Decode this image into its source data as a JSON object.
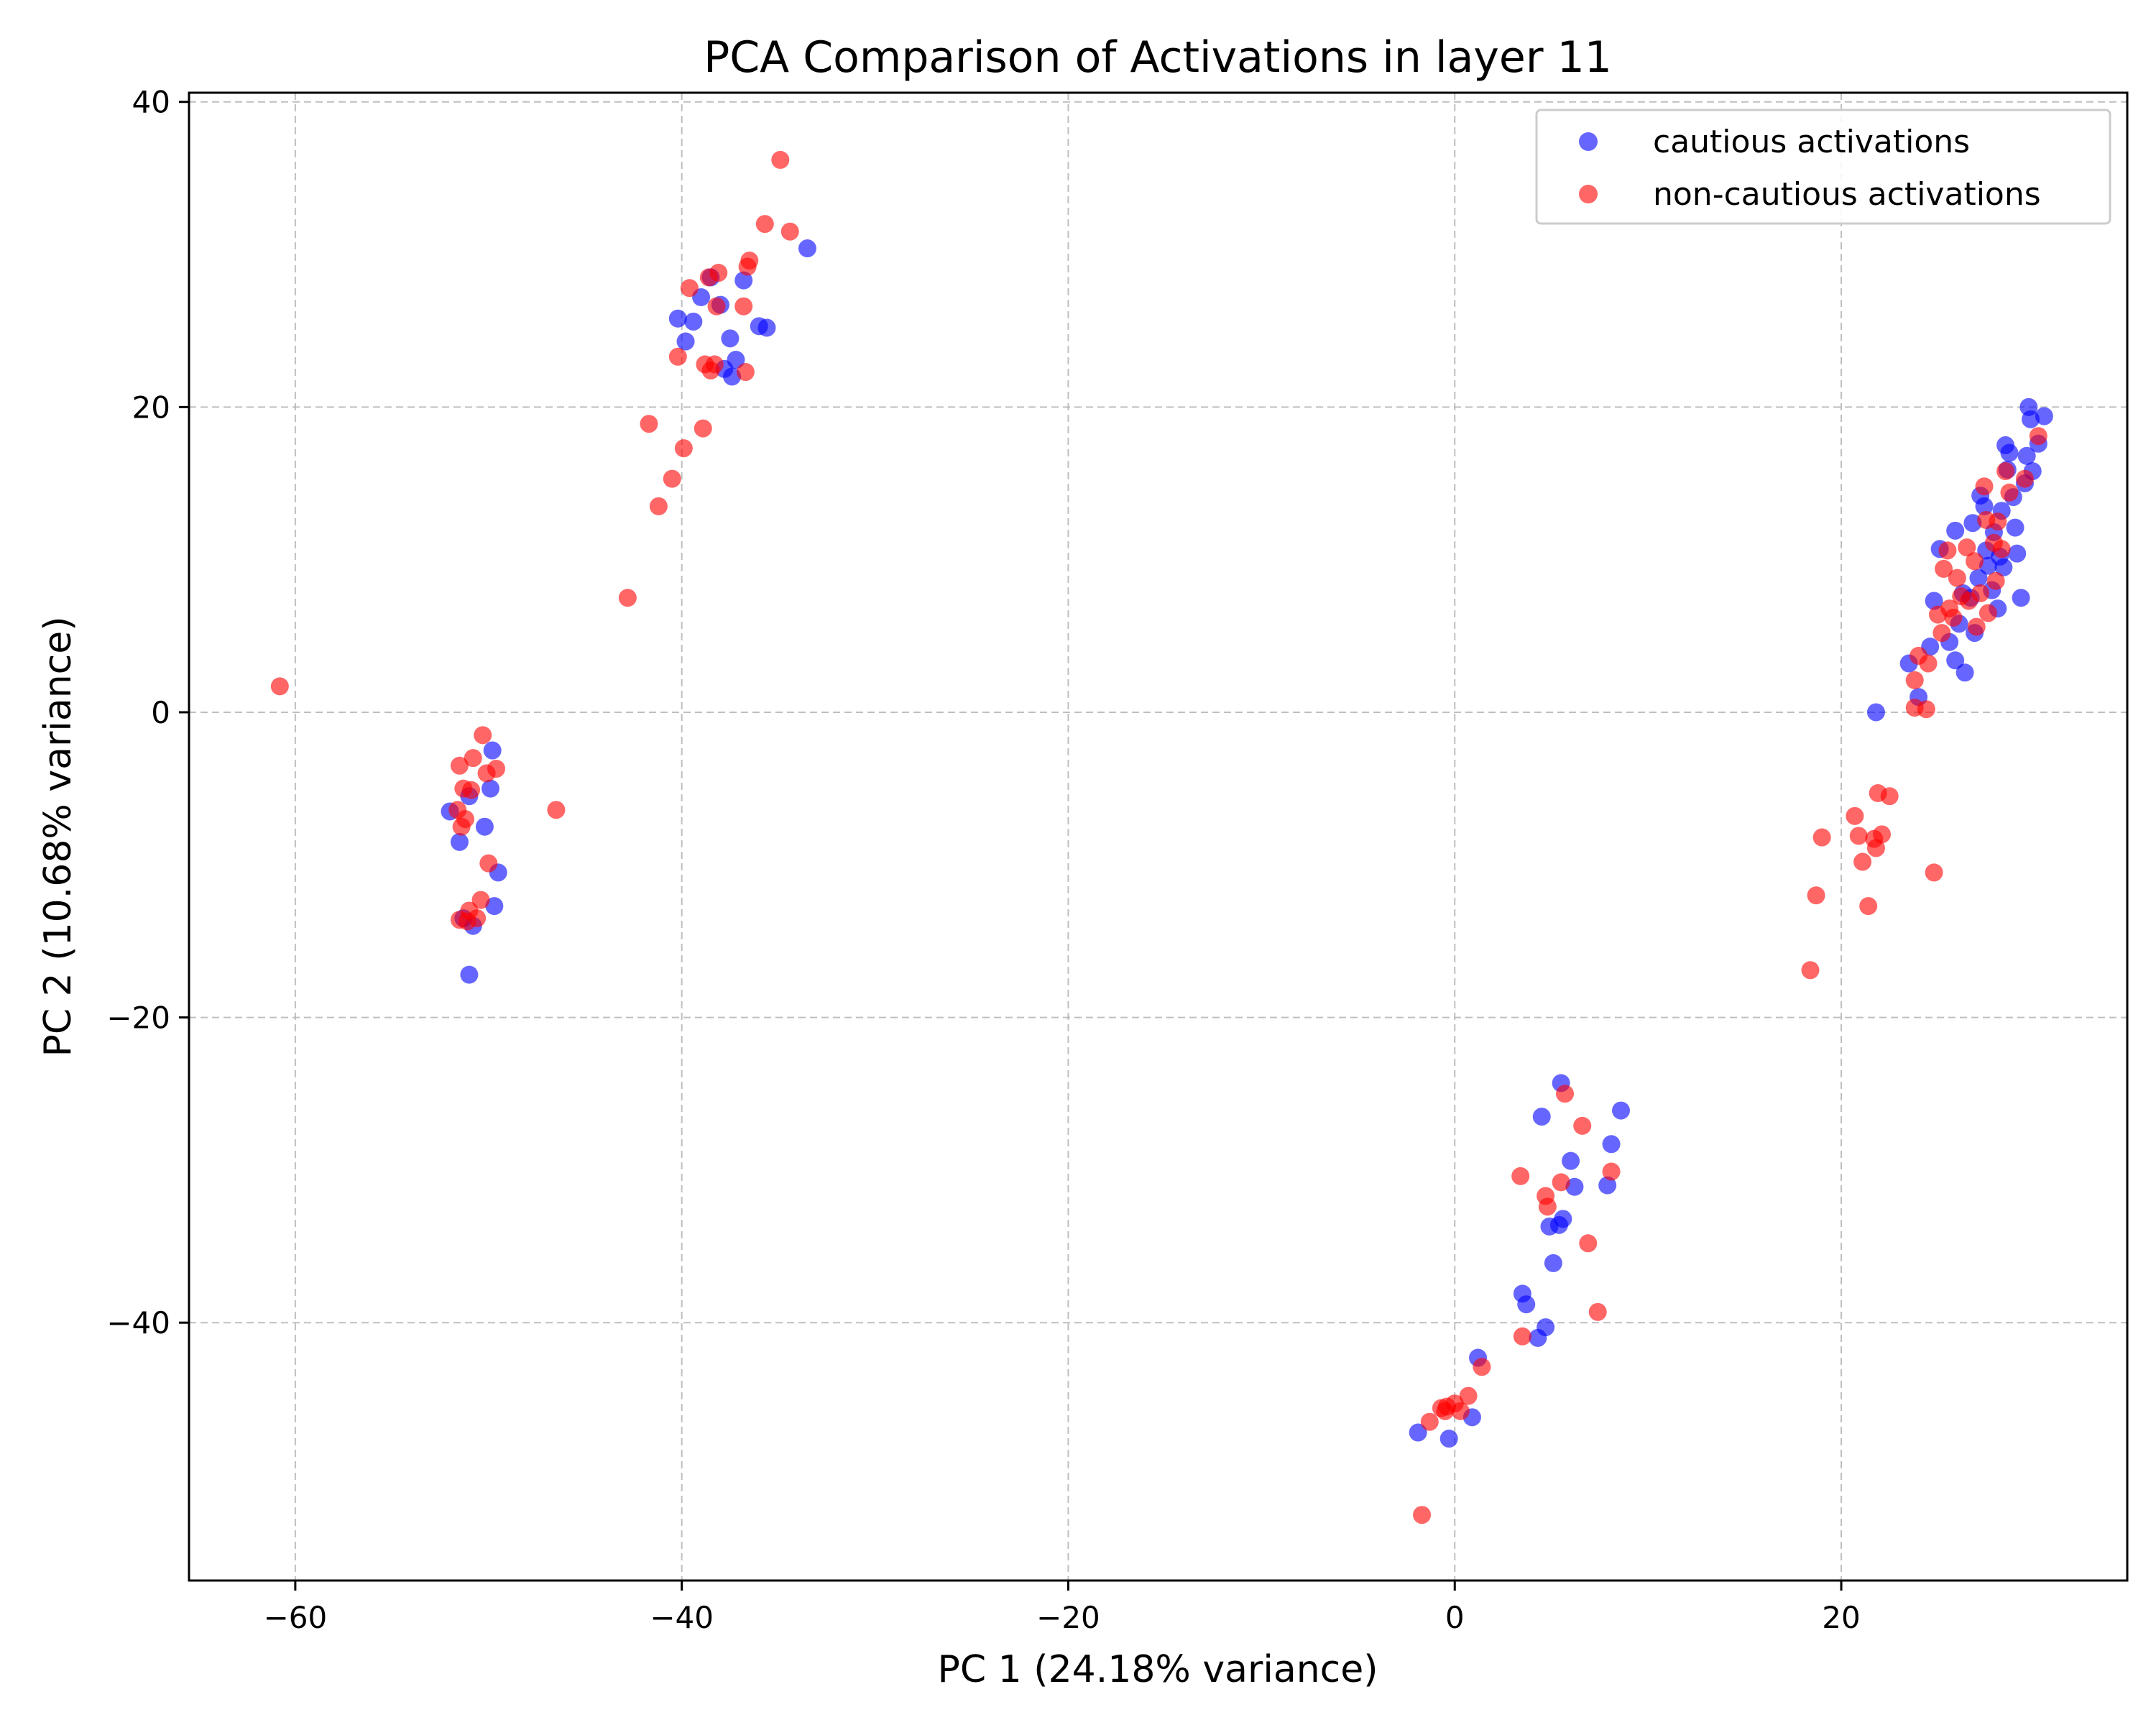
{
  "chart_data": {
    "type": "scatter",
    "title": "PCA Comparison of Activations in layer 11",
    "xlabel": "PC 1 (24.18% variance)",
    "ylabel": "PC 2 (10.68% variance)",
    "xlim": [
      -65.5,
      34.8
    ],
    "ylim": [
      -56.9,
      40.6
    ],
    "xticks": [
      -60,
      -40,
      -20,
      0,
      20
    ],
    "yticks": [
      -40,
      -20,
      0,
      20,
      40
    ],
    "xtick_labels": [
      "−60",
      "−40",
      "−20",
      "0",
      "20"
    ],
    "ytick_labels": [
      "−40",
      "−20",
      "0",
      "20",
      "40"
    ],
    "grid": true,
    "legend_position": "upper right",
    "series": [
      {
        "name": "cautious activations",
        "color": "#0000ff",
        "points": [
          [
            -52.0,
            -6.5
          ],
          [
            -51.5,
            -8.5
          ],
          [
            -51.0,
            -5.5
          ],
          [
            -50.2,
            -7.5
          ],
          [
            -49.8,
            -2.5
          ],
          [
            -49.5,
            -10.5
          ],
          [
            -49.7,
            -12.7
          ],
          [
            -50.8,
            -14.0
          ],
          [
            -51.0,
            -17.2
          ],
          [
            -49.9,
            -5.0
          ],
          [
            -51.3,
            -13.5
          ],
          [
            -40.2,
            25.8
          ],
          [
            -39.8,
            24.3
          ],
          [
            -39.4,
            25.6
          ],
          [
            -39.0,
            27.2
          ],
          [
            -38.5,
            28.5
          ],
          [
            -38.0,
            26.7
          ],
          [
            -37.8,
            22.5
          ],
          [
            -37.5,
            24.5
          ],
          [
            -37.2,
            23.1
          ],
          [
            -36.8,
            28.3
          ],
          [
            -36.0,
            25.3
          ],
          [
            -35.6,
            25.2
          ],
          [
            -33.5,
            30.4
          ],
          [
            -37.4,
            22.0
          ],
          [
            1.2,
            -42.3
          ],
          [
            0.9,
            -46.2
          ],
          [
            -0.3,
            -47.6
          ],
          [
            -1.9,
            -47.2
          ],
          [
            3.5,
            -38.1
          ],
          [
            3.7,
            -38.8
          ],
          [
            4.3,
            -41.0
          ],
          [
            4.7,
            -40.3
          ],
          [
            4.5,
            -26.5
          ],
          [
            4.9,
            -33.7
          ],
          [
            5.1,
            -36.1
          ],
          [
            5.4,
            -33.6
          ],
          [
            5.6,
            -33.2
          ],
          [
            5.5,
            -24.3
          ],
          [
            6.0,
            -29.4
          ],
          [
            6.2,
            -31.1
          ],
          [
            7.9,
            -31.0
          ],
          [
            8.1,
            -28.3
          ],
          [
            8.6,
            -26.1
          ],
          [
            21.8,
            0.0
          ],
          [
            23.5,
            3.2
          ],
          [
            24.0,
            1.0
          ],
          [
            24.6,
            4.3
          ],
          [
            24.8,
            7.3
          ],
          [
            25.1,
            10.7
          ],
          [
            25.6,
            4.6
          ],
          [
            25.9,
            11.9
          ],
          [
            25.9,
            3.4
          ],
          [
            26.1,
            5.8
          ],
          [
            26.3,
            7.8
          ],
          [
            26.4,
            2.6
          ],
          [
            26.7,
            7.5
          ],
          [
            26.9,
            5.2
          ],
          [
            27.2,
            14.2
          ],
          [
            27.4,
            13.5
          ],
          [
            27.5,
            10.6
          ],
          [
            27.6,
            9.6
          ],
          [
            27.8,
            8.0
          ],
          [
            27.9,
            11.8
          ],
          [
            28.1,
            6.8
          ],
          [
            28.2,
            10.2
          ],
          [
            28.3,
            13.2
          ],
          [
            28.5,
            17.5
          ],
          [
            28.6,
            15.9
          ],
          [
            28.7,
            17.0
          ],
          [
            28.9,
            14.1
          ],
          [
            29.0,
            12.1
          ],
          [
            29.1,
            10.4
          ],
          [
            29.3,
            7.5
          ],
          [
            29.5,
            15.0
          ],
          [
            29.6,
            16.8
          ],
          [
            29.8,
            19.2
          ],
          [
            29.9,
            15.8
          ],
          [
            30.2,
            17.6
          ],
          [
            29.7,
            20.0
          ],
          [
            30.5,
            19.4
          ],
          [
            28.4,
            9.5
          ],
          [
            26.8,
            12.4
          ],
          [
            27.1,
            8.8
          ]
        ]
      },
      {
        "name": "non-cautious activations",
        "color": "#ff0000",
        "points": [
          [
            -60.8,
            1.7
          ],
          [
            -46.5,
            -6.4
          ],
          [
            -50.3,
            -1.5
          ],
          [
            -51.5,
            -3.5
          ],
          [
            -50.8,
            -3.0
          ],
          [
            -50.1,
            -4.0
          ],
          [
            -49.6,
            -3.7
          ],
          [
            -51.3,
            -5.0
          ],
          [
            -50.9,
            -5.1
          ],
          [
            -51.6,
            -6.4
          ],
          [
            -51.2,
            -7.0
          ],
          [
            -51.4,
            -7.5
          ],
          [
            -50.0,
            -9.9
          ],
          [
            -50.4,
            -12.3
          ],
          [
            -51.0,
            -13.0
          ],
          [
            -51.5,
            -13.6
          ],
          [
            -50.6,
            -13.5
          ],
          [
            -51.1,
            -13.7
          ],
          [
            -42.8,
            7.5
          ],
          [
            -41.7,
            18.9
          ],
          [
            -41.2,
            13.5
          ],
          [
            -40.5,
            15.3
          ],
          [
            -39.9,
            17.3
          ],
          [
            -40.2,
            23.3
          ],
          [
            -39.6,
            27.8
          ],
          [
            -38.9,
            18.6
          ],
          [
            -38.8,
            22.8
          ],
          [
            -38.5,
            22.4
          ],
          [
            -38.3,
            22.8
          ],
          [
            -38.2,
            26.6
          ],
          [
            -38.1,
            28.8
          ],
          [
            -38.6,
            28.5
          ],
          [
            -36.8,
            26.6
          ],
          [
            -36.7,
            22.3
          ],
          [
            -36.6,
            29.2
          ],
          [
            -36.5,
            29.6
          ],
          [
            -35.7,
            32.0
          ],
          [
            -34.9,
            36.2
          ],
          [
            -34.4,
            31.5
          ],
          [
            -1.7,
            -52.6
          ],
          [
            -1.3,
            -46.5
          ],
          [
            -0.7,
            -45.6
          ],
          [
            -0.5,
            -45.8
          ],
          [
            -0.4,
            -45.5
          ],
          [
            0.0,
            -45.3
          ],
          [
            0.3,
            -45.8
          ],
          [
            0.7,
            -44.8
          ],
          [
            1.4,
            -42.9
          ],
          [
            3.4,
            -30.4
          ],
          [
            3.5,
            -40.9
          ],
          [
            4.7,
            -31.7
          ],
          [
            4.8,
            -32.4
          ],
          [
            5.5,
            -30.8
          ],
          [
            5.7,
            -25.0
          ],
          [
            6.6,
            -27.1
          ],
          [
            6.9,
            -34.8
          ],
          [
            7.4,
            -39.3
          ],
          [
            8.1,
            -30.1
          ],
          [
            18.4,
            -16.9
          ],
          [
            18.7,
            -12.0
          ],
          [
            19.0,
            -8.2
          ],
          [
            20.7,
            -6.8
          ],
          [
            20.9,
            -8.1
          ],
          [
            21.1,
            -9.8
          ],
          [
            21.4,
            -12.7
          ],
          [
            21.7,
            -8.3
          ],
          [
            21.8,
            -8.9
          ],
          [
            21.9,
            -5.3
          ],
          [
            22.1,
            -8.0
          ],
          [
            22.5,
            -5.5
          ],
          [
            24.8,
            -10.5
          ],
          [
            23.8,
            2.1
          ],
          [
            23.8,
            0.3
          ],
          [
            24.0,
            3.7
          ],
          [
            24.4,
            0.2
          ],
          [
            24.5,
            3.2
          ],
          [
            25.0,
            6.4
          ],
          [
            25.2,
            5.2
          ],
          [
            25.3,
            9.4
          ],
          [
            25.5,
            10.6
          ],
          [
            25.6,
            6.8
          ],
          [
            25.8,
            6.2
          ],
          [
            26.0,
            8.8
          ],
          [
            26.2,
            7.6
          ],
          [
            26.5,
            10.8
          ],
          [
            26.9,
            9.9
          ],
          [
            27.0,
            5.6
          ],
          [
            27.2,
            7.8
          ],
          [
            27.4,
            14.8
          ],
          [
            27.5,
            12.6
          ],
          [
            27.6,
            6.5
          ],
          [
            27.9,
            11.1
          ],
          [
            28.1,
            12.5
          ],
          [
            28.3,
            10.7
          ],
          [
            28.5,
            15.8
          ],
          [
            28.7,
            14.4
          ],
          [
            29.5,
            15.3
          ],
          [
            30.2,
            18.1
          ],
          [
            28.0,
            8.6
          ],
          [
            26.6,
            7.3
          ]
        ]
      }
    ]
  }
}
